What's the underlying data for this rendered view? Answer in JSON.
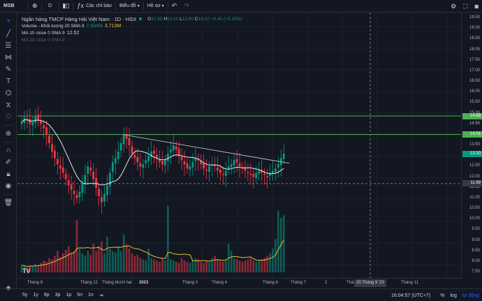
{
  "toolbar": {
    "symbol": "MSB",
    "add_icon": "plus-circle-icon",
    "interval": "D",
    "compare_icon": "compare-icon",
    "bar_style_icon": "candles-icon",
    "indicators_label": "Các chỉ báo",
    "layout_label": "Biểu đồ",
    "templates_label": "Hồ sơ",
    "undo_icon": "undo-icon",
    "redo_icon": "redo-icon",
    "settings_icon": "gear-icon",
    "fullscreen_icon": "fullscreen-icon",
    "snapshot_icon": "camera-icon"
  },
  "legend": {
    "title": "Ngân hàng TMCP Hàng Hải Việt Nam · 1D · HSX",
    "o_key": "O",
    "o": "12.65",
    "h_key": "H",
    "h": "13.10",
    "l_key": "L",
    "l": "12.60",
    "c_key": "C",
    "c": "13.10",
    "change": "+0.40 (+3.15%)",
    "volume_label": "Volume - Khối lượng 20 SMA 9",
    "volume_value": "7.634M",
    "volume_sma": "3.713M",
    "ma10_label": "MA 10 close 0 SMA 9",
    "ma10_value": "12.52",
    "ma20_label": "MA 20 close 0 SMA 9"
  },
  "price_axis": {
    "ticks": [
      "19.50",
      "19.00",
      "18.50",
      "18.00",
      "17.50",
      "17.00",
      "16.50",
      "16.00",
      "15.50",
      "15.00",
      "14.50",
      "14.00",
      "13.50",
      "13.00",
      "12.50",
      "12.00",
      "11.50",
      "11.00",
      "10.50",
      "10.00",
      "9.50",
      "9.00",
      "8.50",
      "8.00",
      "7.50"
    ],
    "badges": [
      {
        "value": "14.88",
        "color": "#4caf50"
      },
      {
        "value": "14.01",
        "color": "#4caf50"
      },
      {
        "value": "13.10",
        "color": "#089981"
      },
      {
        "value": "11.69",
        "color": "#363a45"
      }
    ]
  },
  "time_axis": {
    "labels": [
      "Tháng 9",
      "Tháng 11",
      "Tháng Mười hai",
      "2023",
      "Tháng 3",
      "Tháng 4",
      "Tháng 6",
      "Tháng 7",
      "2",
      "Thán",
      "Tháng 11"
    ],
    "crosshair": "20 Tháng 9 '23"
  },
  "bottom": {
    "ranges": [
      "5y",
      "1y",
      "6p",
      "3p",
      "1p",
      "5n",
      "1n"
    ],
    "goto_icon": "goto-date-icon",
    "clock": "16:04:57 (UTC+7)",
    "percent": "%",
    "log": "log",
    "auto": "tự động"
  },
  "tools": {
    "icons": [
      "crosshair-icon",
      "trendline-icon",
      "fib-icon",
      "pattern-icon",
      "brush-icon",
      "text-icon",
      "forecast-icon",
      "ruler-icon",
      "heart-icon",
      "zoom-icon",
      "magnet-icon",
      "lock-drawing-icon",
      "lock-icon",
      "eye-icon",
      "trash-icon",
      "layers-icon"
    ]
  },
  "chart_data": {
    "type": "candlestick",
    "colors": {
      "up": "#089981",
      "down": "#f23645",
      "ma10": "#e8e8e8",
      "volume_sma": "#e0c030",
      "trendline": "#d1d4dc",
      "hline": "#4caf50"
    },
    "price_range": [
      7.5,
      19.5
    ],
    "horizontal_lines": [
      14.88,
      14.01
    ],
    "dashed_level": 11.69,
    "trendline": {
      "from": 14.0,
      "to": 12.65
    },
    "x_labels": [
      "Tháng 9",
      "Tháng 11",
      "Tháng Mười hai",
      "2023",
      "Tháng 3",
      "Tháng 4",
      "Tháng 6",
      "Tháng 7"
    ],
    "close_path": [
      14.6,
      14.8,
      14.7,
      14.5,
      14.6,
      14.9,
      14.7,
      14.5,
      14.3,
      14.0,
      13.6,
      13.2,
      12.9,
      12.6,
      12.4,
      12.2,
      11.9,
      11.6,
      11.4,
      11.2,
      11.0,
      11.3,
      11.7,
      12.1,
      12.5,
      12.3,
      11.9,
      11.5,
      11.1,
      10.8,
      11.2,
      11.6,
      12.2,
      12.7,
      12.9,
      13.2,
      13.6,
      14.0,
      13.8,
      13.5,
      13.1,
      12.9,
      12.7,
      12.5,
      12.6,
      12.8,
      13.0,
      13.2,
      13.1,
      12.9,
      12.7,
      12.6,
      12.8,
      13.1,
      13.3,
      13.5,
      13.3,
      13.0,
      12.8,
      12.6,
      12.4,
      12.5,
      12.7,
      12.9,
      12.8,
      12.6,
      12.4,
      12.3,
      12.5,
      12.6,
      12.5,
      12.3,
      12.2,
      12.1,
      12.3,
      12.5,
      12.6,
      12.8,
      12.7,
      12.5,
      12.4,
      12.3,
      12.2,
      12.1,
      12.0,
      12.2,
      12.3,
      12.2,
      12.1,
      12.0,
      12.2,
      12.3,
      12.4,
      12.6,
      12.9,
      13.1
    ],
    "volumes": [
      0.3,
      0.25,
      0.2,
      0.3,
      0.28,
      0.35,
      0.3,
      0.4,
      0.5,
      0.45,
      0.6,
      0.55,
      0.7,
      0.9,
      0.65,
      0.8,
      0.95,
      1.1,
      0.85,
      0.9,
      2.2,
      1.0,
      0.8,
      0.7,
      0.9,
      0.75,
      1.2,
      0.9,
      1.1,
      1.3,
      0.8,
      1.5,
      1.0,
      0.9,
      0.85,
      1.1,
      0.9,
      1.6,
      1.2,
      1.0,
      0.8,
      0.7,
      0.75,
      0.6,
      0.55,
      0.5,
      1.0,
      0.6,
      0.55,
      0.5,
      0.45,
      0.6,
      0.5,
      2.8,
      0.55,
      0.5,
      0.45,
      0.4,
      0.6,
      0.5,
      0.45,
      0.4,
      0.5,
      0.6,
      0.55,
      0.45,
      0.4,
      0.5,
      0.45,
      0.6,
      0.7,
      0.55,
      0.5,
      0.45,
      0.5,
      1.2,
      0.9,
      0.6,
      0.55,
      0.5,
      0.45,
      0.5,
      0.55,
      0.6,
      0.5,
      0.45,
      0.5,
      0.55,
      0.6,
      0.7,
      0.8,
      1.0,
      1.4,
      2.6,
      2.3,
      2.4
    ]
  }
}
